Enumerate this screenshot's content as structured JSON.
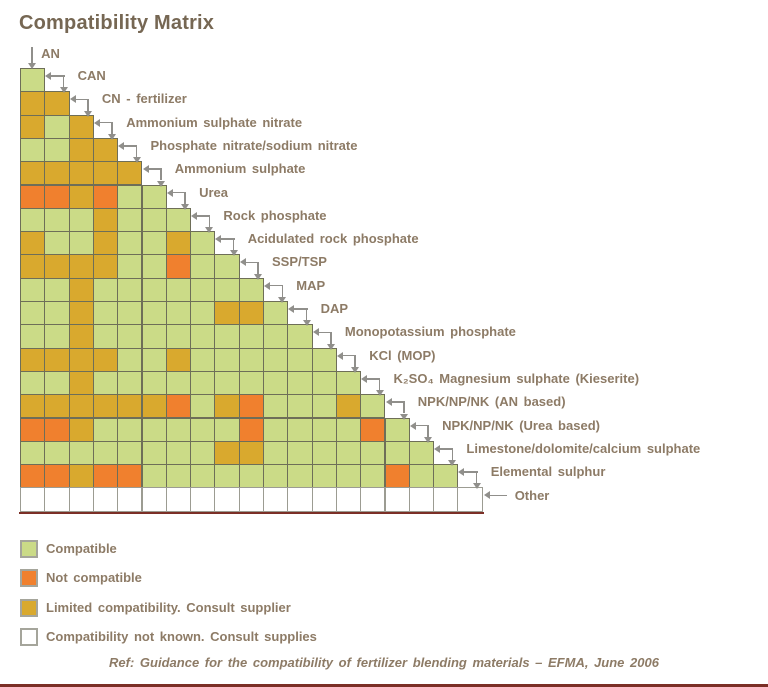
{
  "title": "Compatibility Matrix",
  "footer": "Ref: Guidance for the compatibility of fertilizer blending materials – EFMA, June 2006",
  "colors": {
    "G": "#cbdb87",
    "O": "#f0802e",
    "Y": "#d9a92e",
    "W": "#ffffff",
    "grid": "#6e6e58",
    "grid_white_row": "#9c9c92",
    "label_text": "#8d7b66",
    "arrow": "#908f8b",
    "accent_line": "#7b2f26"
  },
  "legend": [
    {
      "key": "G",
      "label": "Compatible"
    },
    {
      "key": "O",
      "label": "Not compatible"
    },
    {
      "key": "Y",
      "label": "Limited compatibility. Consult supplier"
    },
    {
      "key": "W",
      "label": "Compatibility not known. Consult supplies"
    }
  ],
  "chart_data": {
    "type": "heatmap",
    "title": "Compatibility Matrix",
    "layout": "lower-triangle staircase; row k (k=1..19) holds the material materials[k] crossed with materials[0..k-1]; AN is a column only; Other is a row only",
    "cell_code_meanings": {
      "G": "Compatible",
      "O": "Not compatible",
      "Y": "Limited compatibility. Consult supplier",
      "W": "Compatibility not known. Consult supplies"
    },
    "materials": [
      "AN",
      "CAN",
      "CN - fertilizer",
      "Ammonium sulphate nitrate",
      "Phosphate nitrate/sodium nitrate",
      "Ammonium sulphate",
      "Urea",
      "Rock phosphate",
      "Acidulated rock phosphate",
      "SSP/TSP",
      "MAP",
      "DAP",
      "Monopotassium phosphate",
      "K₂SO₄ Magnesium sulphate (Kieserite)",
      "KCl (MOP)",
      "NPK/NP/NK (AN based)",
      "NPK/NP/NK (Urea based)",
      "Limestone/dolomite/calcium sulphate",
      "Elemental sulphur",
      "Other"
    ],
    "material_display_order": [
      "AN",
      "CAN",
      "CN - fertilizer",
      "Ammonium sulphate nitrate",
      "Phosphate nitrate/sodium nitrate",
      "Ammonium sulphate",
      "Urea",
      "Rock phosphate",
      "Acidulated rock phosphate",
      "SSP/TSP",
      "MAP",
      "DAP",
      "Monopotassium phosphate",
      "KCl (MOP)",
      "K₂SO₄ Magnesium sulphate (Kieserite)",
      "NPK/NP/NK (AN based)",
      "NPK/NP/NK (Urea based)",
      "Limestone/dolomite/calcium sulphate",
      "Elemental sulphur",
      "Other"
    ],
    "rows": [
      {
        "material": "CAN",
        "codes": "G"
      },
      {
        "material": "CN - fertilizer",
        "codes": "YY"
      },
      {
        "material": "Ammonium sulphate nitrate",
        "codes": "YGY"
      },
      {
        "material": "Phosphate nitrate/sodium nitrate",
        "codes": "GGYY"
      },
      {
        "material": "Ammonium sulphate",
        "codes": "YYYYY"
      },
      {
        "material": "Urea",
        "codes": "OOYOGG"
      },
      {
        "material": "Rock phosphate",
        "codes": "GGGYGGG"
      },
      {
        "material": "Acidulated rock phosphate",
        "codes": "YGGYGGYG"
      },
      {
        "material": "SSP/TSP",
        "codes": "YYYYGGOGG"
      },
      {
        "material": "MAP",
        "codes": "GGYGGGGGGG"
      },
      {
        "material": "DAP",
        "codes": "GGYGGGGGYYG"
      },
      {
        "material": "Monopotassium phosphate",
        "codes": "GGYGGGGGGGGG"
      },
      {
        "material": "KCl (MOP)",
        "codes": "YYYYGGYGGGGGG"
      },
      {
        "material": "K₂SO₄ Magnesium sulphate (Kieserite)",
        "codes": "GGYGGGGGGGGGGG"
      },
      {
        "material": "NPK/NP/NK (AN based)",
        "codes": "YYYYYYOGYOGGGYG"
      },
      {
        "material": "NPK/NP/NK (Urea based)",
        "codes": "OOYGGGGGGOGGGGOG"
      },
      {
        "material": "Limestone/dolomite/calcium sulphate",
        "codes": "GGGGGGGGYYGGGGGGG"
      },
      {
        "material": "Elemental sulphur",
        "codes": "OOYOOGGGGGGGGGGOGG"
      },
      {
        "material": "Other",
        "codes": "WWWWWWWWWWWWWWWWWWW"
      }
    ]
  }
}
